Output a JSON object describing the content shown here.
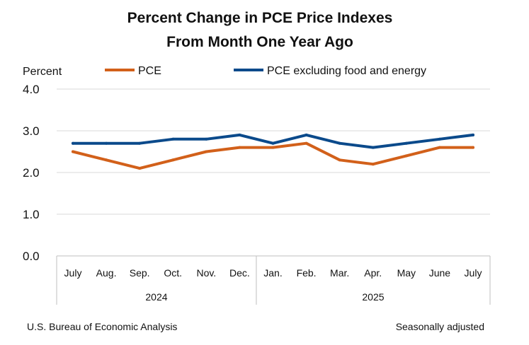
{
  "chart_data": {
    "type": "line",
    "title": [
      "Percent Change in PCE Price Indexes",
      "From Month One Year Ago"
    ],
    "ylabel": "Percent",
    "ylim": [
      0,
      4
    ],
    "yticks": [
      {
        "value": 0,
        "label": "0.0"
      },
      {
        "value": 1,
        "label": "1.0"
      },
      {
        "value": 2,
        "label": "2.0"
      },
      {
        "value": 3,
        "label": "3.0"
      },
      {
        "value": 4,
        "label": "4.0"
      }
    ],
    "categories": [
      "July",
      "Aug.",
      "Sep.",
      "Oct.",
      "Nov.",
      "Dec.",
      "Jan.",
      "Feb.",
      "Mar.",
      "Apr.",
      "May",
      "June",
      "July"
    ],
    "year_groups": [
      {
        "label": "2024",
        "start": 0,
        "end": 5
      },
      {
        "label": "2025",
        "start": 6,
        "end": 12
      }
    ],
    "series": [
      {
        "name": "PCE",
        "color": "#d2601a",
        "values": [
          2.5,
          2.3,
          2.1,
          2.3,
          2.5,
          2.6,
          2.6,
          2.7,
          2.3,
          2.2,
          2.4,
          2.6,
          2.6
        ]
      },
      {
        "name": "PCE excluding food and energy",
        "color": "#0b4a8b",
        "values": [
          2.7,
          2.7,
          2.7,
          2.8,
          2.8,
          2.9,
          2.7,
          2.9,
          2.7,
          2.6,
          2.7,
          2.8,
          2.9
        ]
      }
    ],
    "grid": true,
    "legend_position": "top"
  },
  "footer": {
    "source": "U.S. Bureau of Economic Analysis",
    "note": "Seasonally adjusted"
  }
}
